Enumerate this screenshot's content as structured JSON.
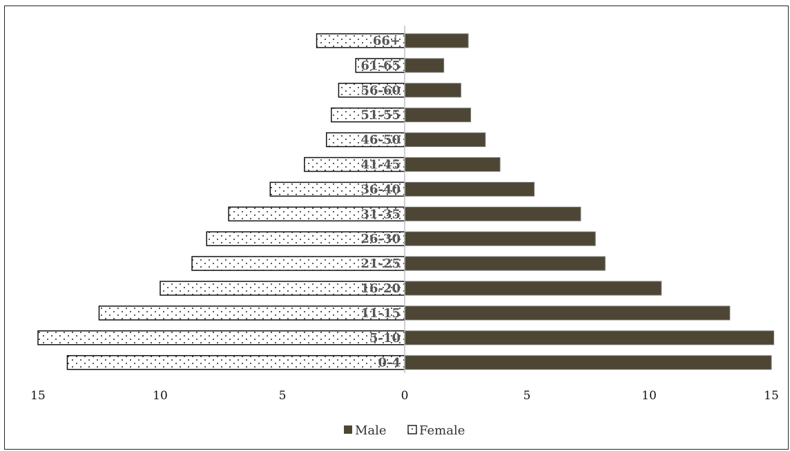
{
  "chart_data": {
    "type": "bar",
    "orientation": "horizontal",
    "layout": "population-pyramid",
    "categories": [
      "0-4",
      "5-10",
      "11-15",
      "16-20",
      "21-25",
      "26-30",
      "31-35",
      "36-40",
      "41-45",
      "46-50",
      "51-55",
      "56-60",
      "61-65",
      "66+"
    ],
    "series": [
      {
        "name": "Male",
        "side": "right",
        "color": "#4d4634",
        "values": [
          15.0,
          15.1,
          13.3,
          10.5,
          8.2,
          7.8,
          7.2,
          5.3,
          3.9,
          3.3,
          2.7,
          2.3,
          1.6,
          2.6
        ]
      },
      {
        "name": "Female",
        "side": "left",
        "pattern": "dotted",
        "values": [
          13.8,
          15.0,
          12.5,
          10.0,
          8.7,
          8.1,
          7.2,
          5.5,
          4.1,
          3.2,
          3.0,
          2.7,
          2.0,
          3.6
        ]
      }
    ],
    "xlim": [
      -15,
      15
    ],
    "x_ticks": [
      -15,
      -10,
      -5,
      0,
      5,
      10,
      15
    ],
    "x_tick_labels": [
      "15",
      "10",
      "5",
      "0",
      "5",
      "10",
      "15"
    ],
    "legend_position": "bottom",
    "grid": false,
    "title": "",
    "xlabel": "",
    "ylabel": ""
  }
}
